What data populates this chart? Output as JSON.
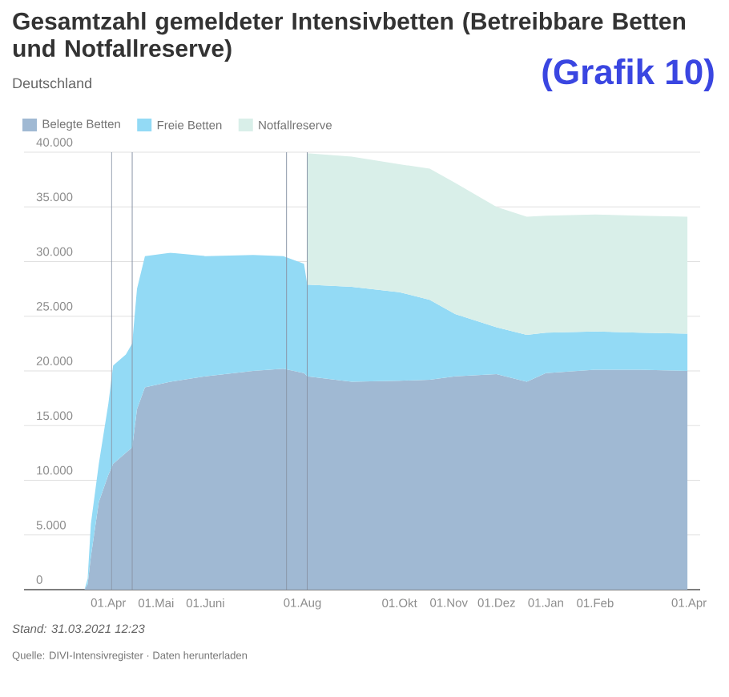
{
  "chart_data": {
    "type": "area",
    "stacked": true,
    "title": "Gesamtzahl gemeldeter Intensivbetten (Betreibbare Betten und Notfallreserve)",
    "subtitle": "Deutschland",
    "x": [
      "2020-03-17",
      "2020-03-19",
      "2020-03-21",
      "2020-03-26",
      "2020-04-01",
      "2020-04-04",
      "2020-04-12",
      "2020-04-16",
      "2020-04-19",
      "2020-04-24",
      "2020-05-10",
      "2020-06-01",
      "2020-07-01",
      "2020-07-20",
      "2020-08-02",
      "2020-08-04",
      "2020-09-01",
      "2020-10-01",
      "2020-10-20",
      "2020-11-05",
      "2020-12-01",
      "2020-12-20",
      "2021-01-01",
      "2021-02-01",
      "2021-03-01",
      "2021-03-31"
    ],
    "series": [
      {
        "name": "Belegte Betten",
        "color": "#a0b9d3",
        "values": [
          0,
          500,
          3000,
          8000,
          10500,
          11500,
          12500,
          13000,
          16500,
          18500,
          19000,
          19500,
          20000,
          20200,
          19800,
          19500,
          19000,
          19100,
          19200,
          19500,
          19700,
          19000,
          19800,
          20100,
          20100,
          20000
        ]
      },
      {
        "name": "Freie Betten",
        "color": "#93daf5",
        "values": [
          0,
          500,
          3000,
          3500,
          6500,
          9000,
          9000,
          9500,
          11000,
          12000,
          11800,
          11000,
          10600,
          10300,
          10000,
          8400,
          8700,
          8100,
          7300,
          5700,
          4300,
          4300,
          3700,
          3500,
          3400,
          3400
        ]
      },
      {
        "name": "Notfallreserve",
        "color": "#d9efe9",
        "values": [
          null,
          null,
          null,
          null,
          null,
          null,
          null,
          null,
          null,
          null,
          null,
          null,
          null,
          null,
          null,
          12000,
          11900,
          11700,
          12000,
          12000,
          11000,
          10800,
          10700,
          10700,
          10700,
          10700
        ]
      }
    ],
    "xlim": [
      "2020-02-08",
      "2021-04-08"
    ],
    "xticks": [
      {
        "value": "2020-04-01",
        "label": "01.Apr"
      },
      {
        "value": "2020-05-01",
        "label": "01.Mai"
      },
      {
        "value": "2020-06-01",
        "label": "01.Juni"
      },
      {
        "value": "2020-08-01",
        "label": "01.Aug"
      },
      {
        "value": "2020-10-01",
        "label": "01.Okt"
      },
      {
        "value": "2020-11-01",
        "label": "01.Nov"
      },
      {
        "value": "2020-12-01",
        "label": "01.Dez"
      },
      {
        "value": "2021-01-01",
        "label": "01.Jan"
      },
      {
        "value": "2021-02-01",
        "label": "01.Feb"
      },
      {
        "value": "2021-04-01",
        "label": "01.Apr"
      }
    ],
    "ylim": [
      0,
      40000
    ],
    "yticks": [
      {
        "value": 0,
        "label": "0"
      },
      {
        "value": 5000,
        "label": "5.000"
      },
      {
        "value": 10000,
        "label": "10.000"
      },
      {
        "value": 15000,
        "label": "15.000"
      },
      {
        "value": 20000,
        "label": "20.000"
      },
      {
        "value": 25000,
        "label": "25.000"
      },
      {
        "value": 30000,
        "label": "30.000"
      },
      {
        "value": 35000,
        "label": "35.000"
      },
      {
        "value": 40000,
        "label": "40.000"
      }
    ],
    "grid": "y",
    "legend": "top left",
    "ref_lines": [
      {
        "axis": "x",
        "value": "2020-04-03",
        "color": "#8a96a8"
      },
      {
        "axis": "x",
        "value": "2020-04-16",
        "color": "#8a96a8"
      },
      {
        "axis": "x",
        "value": "2020-07-22",
        "color": "#8a96a8"
      },
      {
        "axis": "x",
        "value": "2020-08-04",
        "color": "#8a96a8"
      }
    ],
    "annotations": [
      "Stand: 31.03.2021 12:23",
      "Quelle: DIVI-Intensivregister · Daten herunterladen",
      "(Grafik 10)"
    ]
  }
}
